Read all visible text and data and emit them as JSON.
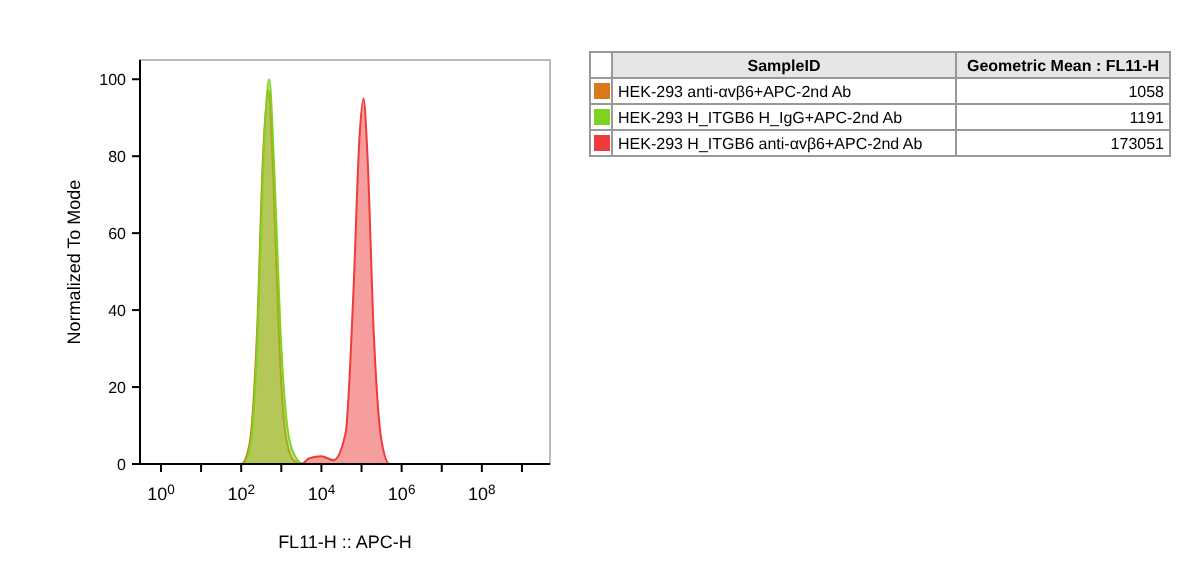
{
  "chart_data": {
    "type": "area",
    "xlabel": "FL11-H :: APC-H",
    "ylabel": "Normalized To Mode",
    "log": "x",
    "grid": false,
    "legend": "right",
    "line_style": "solid",
    "legend_title": "SampleID",
    "annotations": [
      "Geometric Mean : FL11-H",
      "1058",
      "1191",
      "173051"
    ],
    "xlim": [
      0.3,
      5000000000
    ],
    "ylim": [
      0,
      105
    ],
    "xticks": [
      {
        "value": 1,
        "label": "10$^{0}$"
      },
      {
        "value": 10,
        "label": null
      },
      {
        "value": 100,
        "label": "10$^{2}$"
      },
      {
        "value": 1000,
        "label": null
      },
      {
        "value": 10000,
        "label": "10$^{4}$"
      },
      {
        "value": 100000,
        "label": null
      },
      {
        "value": 1000000,
        "label": "10$^{6}$"
      },
      {
        "value": 10000000,
        "label": null
      },
      {
        "value": 100000000,
        "label": "10$^{8}$"
      },
      {
        "value": 1000000000,
        "label": null
      }
    ],
    "yticks": [
      0,
      20,
      40,
      60,
      80,
      100
    ],
    "series": [
      {
        "name": "HEK-293 anti-αvβ6+APC-2nd Ab",
        "color": "#d9781c",
        "x": [
          0.3,
          100,
          160,
          250,
          350,
          480,
          630,
          900,
          1260,
          2000,
          3200,
          5000000000
        ],
        "values": [
          0,
          0,
          5,
          35,
          80,
          97,
          75,
          30,
          8,
          1,
          0,
          0
        ]
      },
      {
        "name": "HEK-293 H_ITGB6 H_IgG+APC-2nd Ab",
        "color": "#7ed321",
        "x": [
          0.3,
          110,
          170,
          260,
          360,
          500,
          660,
          950,
          1400,
          2200,
          3500,
          5000000000
        ],
        "values": [
          0,
          0,
          5,
          35,
          80,
          100,
          78,
          35,
          10,
          2,
          0,
          0
        ]
      },
      {
        "name": "HEK-293 H_ITGB6 anti-αvβ6+APC-2nd Ab",
        "color": "#ee3b3b",
        "x": [
          0.3,
          3200,
          5000,
          10000,
          20000,
          40000,
          63000,
          89000,
          112000,
          141000,
          200000,
          316000,
          500000,
          5000000000
        ],
        "values": [
          0,
          0,
          1.5,
          2,
          1,
          8,
          45,
          85,
          95,
          80,
          35,
          6,
          0,
          0
        ]
      }
    ]
  }
}
